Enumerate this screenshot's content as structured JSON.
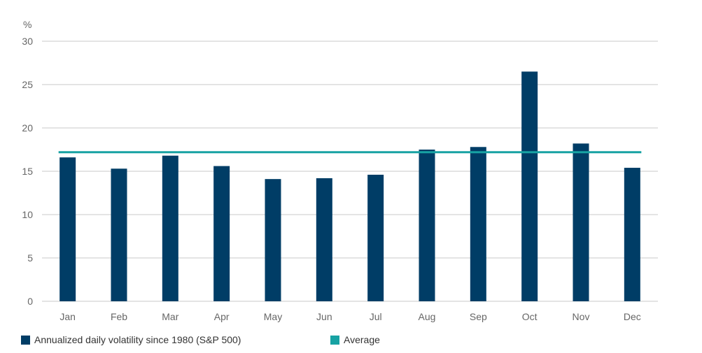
{
  "chart_data": {
    "type": "bar",
    "yunit": "%",
    "categories": [
      "Jan",
      "Feb",
      "Mar",
      "Apr",
      "May",
      "Jun",
      "Jul",
      "Aug",
      "Sep",
      "Oct",
      "Nov",
      "Dec"
    ],
    "series": [
      {
        "name": "Annualized daily volatility since 1980 (S&P 500)",
        "type": "bar",
        "color": "#003d66",
        "values": [
          16.6,
          15.3,
          16.8,
          15.6,
          14.1,
          14.2,
          14.6,
          17.5,
          17.8,
          26.5,
          18.2,
          15.4
        ]
      },
      {
        "name": "Average",
        "type": "line",
        "color": "#17a2a3",
        "value": 17.2
      }
    ],
    "yticks": [
      "0",
      "5",
      "10",
      "15",
      "20",
      "25",
      "30"
    ],
    "ylim": [
      0,
      30
    ],
    "grid": true,
    "legend_position": "bottom-left"
  }
}
